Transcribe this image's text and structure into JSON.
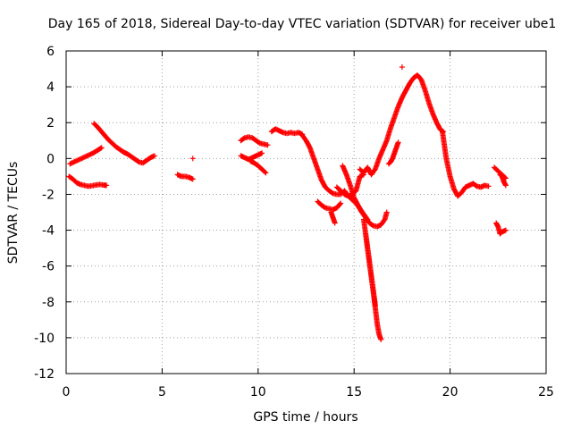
{
  "chart_data": {
    "type": "scatter",
    "title": "Day 165 of 2018, Sidereal Day-to-day VTEC variation (SDTVAR) for receiver ube1",
    "xlabel": "GPS time / hours",
    "ylabel": "SDTVAR / TECUs",
    "xlim": [
      0,
      25
    ],
    "ylim": [
      -12,
      6
    ],
    "x_ticks": [
      0,
      5,
      10,
      15,
      20,
      25
    ],
    "y_ticks": [
      -12,
      -10,
      -8,
      -6,
      -4,
      -2,
      0,
      2,
      4,
      6
    ],
    "grid": true,
    "marker": "+",
    "series": [
      {
        "color": "#ff0000",
        "segments": [
          {
            "x": [
              0.2,
              0.5,
              0.8,
              1.1,
              1.4,
              1.7,
              1.85
            ],
            "y": [
              -0.3,
              -0.15,
              0.0,
              0.15,
              0.3,
              0.5,
              0.6
            ]
          },
          {
            "x": [
              0.15,
              0.35,
              0.55,
              0.75,
              0.95,
              1.15,
              1.35,
              1.55,
              1.75,
              1.95,
              2.1
            ],
            "y": [
              -1.0,
              -1.15,
              -1.35,
              -1.45,
              -1.5,
              -1.55,
              -1.52,
              -1.48,
              -1.45,
              -1.48,
              -1.5
            ]
          },
          {
            "x": [
              1.45,
              1.6,
              1.8,
              2.0,
              2.2,
              2.4,
              2.6,
              2.8,
              3.0,
              3.2,
              3.4,
              3.6,
              3.8,
              4.0,
              4.2,
              4.4,
              4.6
            ],
            "y": [
              1.95,
              1.8,
              1.55,
              1.3,
              1.05,
              0.85,
              0.65,
              0.5,
              0.35,
              0.25,
              0.1,
              -0.05,
              -0.2,
              -0.25,
              -0.1,
              0.05,
              0.15
            ]
          },
          {
            "x": [
              5.8,
              6.0,
              6.2,
              6.4,
              6.6
            ],
            "y": [
              -0.9,
              -1.0,
              -1.0,
              -1.05,
              -1.15
            ]
          },
          {
            "x": [
              6.6
            ],
            "y": [
              0.0
            ]
          },
          {
            "x": [
              9.1,
              9.3,
              9.5,
              9.7,
              9.9,
              10.1,
              10.3,
              10.5
            ],
            "y": [
              1.0,
              1.15,
              1.2,
              1.15,
              1.0,
              0.85,
              0.8,
              0.75
            ]
          },
          {
            "x": [
              9.1,
              9.3,
              9.5,
              9.7,
              9.9,
              10.1,
              10.2
            ],
            "y": [
              0.15,
              0.05,
              -0.05,
              0.05,
              0.15,
              0.25,
              0.3
            ]
          },
          {
            "x": [
              9.6,
              9.8,
              10.0,
              10.2,
              10.4
            ],
            "y": [
              -0.15,
              -0.25,
              -0.4,
              -0.6,
              -0.8
            ]
          },
          {
            "x": [
              10.7,
              10.9,
              11.1,
              11.3,
              11.5,
              11.7,
              11.9,
              12.1,
              12.3
            ],
            "y": [
              1.5,
              1.65,
              1.55,
              1.45,
              1.4,
              1.45,
              1.4,
              1.45,
              1.35
            ]
          },
          {
            "x": [
              12.3,
              12.5,
              12.7,
              12.9,
              13.1,
              13.3,
              13.5,
              13.7,
              13.9,
              14.1,
              14.3,
              14.5,
              14.7,
              14.9,
              15.1,
              15.3,
              15.5,
              15.7
            ],
            "y": [
              1.3,
              1.0,
              0.6,
              0.0,
              -0.6,
              -1.2,
              -1.6,
              -1.8,
              -1.95,
              -2.0,
              -2.0,
              -1.8,
              -2.1,
              -2.3,
              -2.5,
              -2.8,
              -3.1,
              -3.4
            ]
          },
          {
            "x": [
              13.1,
              13.3,
              13.5,
              13.7,
              13.9,
              14.1,
              14.3
            ],
            "y": [
              -2.4,
              -2.6,
              -2.75,
              -2.8,
              -2.85,
              -2.75,
              -2.5
            ]
          },
          {
            "x": [
              14.1,
              14.3,
              14.5,
              14.7,
              14.9,
              15.1,
              15.3,
              15.5
            ],
            "y": [
              -1.6,
              -1.8,
              -2.0,
              -2.1,
              -2.0,
              -1.8,
              -1.0,
              -0.9
            ]
          },
          {
            "x": [
              13.8,
              13.9,
              14.0
            ],
            "y": [
              -3.0,
              -3.3,
              -3.6
            ]
          },
          {
            "x": [
              14.4,
              14.6,
              14.8,
              15.0,
              15.2,
              15.4,
              15.6,
              15.8,
              16.0,
              16.2,
              16.4,
              16.6,
              16.7
            ],
            "y": [
              -0.4,
              -0.9,
              -1.5,
              -2.2,
              -2.6,
              -3.0,
              -3.3,
              -3.6,
              -3.75,
              -3.8,
              -3.7,
              -3.4,
              -3.0
            ]
          },
          {
            "x": [
              15.5,
              15.6,
              15.7,
              15.8,
              15.9,
              16.0,
              16.1,
              16.2,
              16.3,
              16.4
            ],
            "y": [
              -3.4,
              -4.2,
              -5.0,
              -5.8,
              -6.6,
              -7.4,
              -8.3,
              -9.2,
              -9.8,
              -10.1
            ]
          },
          {
            "x": [
              15.6,
              15.7,
              15.8,
              15.9,
              16.0,
              16.1
            ],
            "y": [
              -4.2,
              -5.0,
              -5.8,
              -6.6,
              -7.4,
              -8.2
            ]
          },
          {
            "x": [
              15.3,
              15.5,
              15.7,
              15.9,
              16.1,
              16.3,
              16.5,
              16.7,
              16.9,
              17.1,
              17.3,
              17.5,
              17.7,
              17.9,
              18.1,
              18.3,
              18.5,
              18.7,
              18.9,
              19.1,
              19.3,
              19.5,
              19.65
            ],
            "y": [
              -0.6,
              -0.8,
              -0.5,
              -0.9,
              -0.6,
              0.0,
              0.5,
              1.0,
              1.7,
              2.3,
              2.9,
              3.4,
              3.8,
              4.2,
              4.5,
              4.65,
              4.4,
              3.8,
              3.1,
              2.5,
              2.0,
              1.6,
              1.5
            ]
          },
          {
            "x": [
              16.8,
              16.9,
              17.0,
              17.1,
              17.2,
              17.3
            ],
            "y": [
              -0.3,
              -0.2,
              0.0,
              0.3,
              0.6,
              0.9
            ]
          },
          {
            "x": [
              17.5
            ],
            "y": [
              5.1
            ]
          },
          {
            "x": [
              19.6,
              19.8,
              20.0,
              20.2,
              20.4,
              20.6,
              20.8,
              21.0,
              21.2,
              21.4,
              21.6,
              21.8,
              22.0
            ],
            "y": [
              1.5,
              0.0,
              -1.0,
              -1.7,
              -2.1,
              -1.9,
              -1.6,
              -1.5,
              -1.4,
              -1.55,
              -1.6,
              -1.5,
              -1.55
            ]
          },
          {
            "x": [
              22.3,
              22.5,
              22.7,
              22.9
            ],
            "y": [
              -0.5,
              -0.7,
              -0.9,
              -1.1
            ]
          },
          {
            "x": [
              22.6,
              22.7,
              22.8,
              22.9
            ],
            "y": [
              -0.9,
              -1.0,
              -1.3,
              -1.5
            ]
          },
          {
            "x": [
              22.4,
              22.5,
              22.6,
              22.7,
              22.9
            ],
            "y": [
              -3.6,
              -3.8,
              -4.2,
              -4.1,
              -4.0
            ]
          }
        ]
      }
    ]
  }
}
